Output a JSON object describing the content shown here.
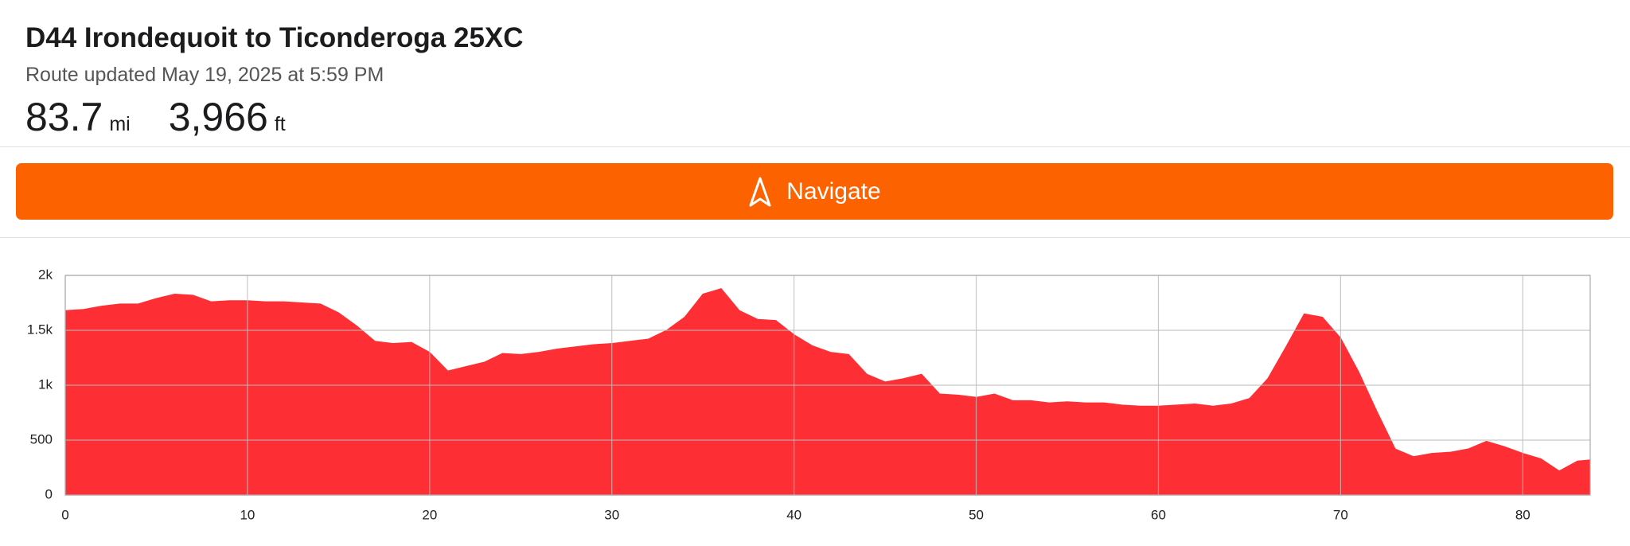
{
  "header": {
    "title": "D44 Irondequoit to Ticonderoga 25XC",
    "subtitle": "Route updated May 19, 2025 at 5:59 PM",
    "stats": [
      {
        "value": "83.7",
        "unit": "mi"
      },
      {
        "value": "3,966",
        "unit": "ft"
      }
    ]
  },
  "button": {
    "label": "Navigate"
  },
  "chart_data": {
    "type": "area",
    "color": "#fd2f35",
    "grid": true,
    "x": [
      0,
      1,
      2,
      3,
      4,
      5,
      6,
      7,
      8,
      9,
      10,
      11,
      12,
      13,
      14,
      15,
      16,
      17,
      18,
      19,
      20,
      21,
      22,
      23,
      24,
      25,
      26,
      27,
      28,
      29,
      30,
      31,
      32,
      33,
      34,
      35,
      36,
      37,
      38,
      39,
      40,
      41,
      42,
      43,
      44,
      45,
      46,
      47,
      48,
      49,
      50,
      51,
      52,
      53,
      54,
      55,
      56,
      57,
      58,
      59,
      60,
      61,
      62,
      63,
      64,
      65,
      66,
      67,
      68,
      69,
      70,
      71,
      72,
      73,
      74,
      75,
      76,
      77,
      78,
      79,
      80,
      81,
      82,
      83,
      83.7
    ],
    "values": [
      1680,
      1690,
      1720,
      1740,
      1740,
      1790,
      1830,
      1820,
      1760,
      1770,
      1770,
      1760,
      1760,
      1750,
      1740,
      1660,
      1540,
      1400,
      1380,
      1390,
      1300,
      1130,
      1170,
      1210,
      1290,
      1280,
      1300,
      1330,
      1350,
      1370,
      1380,
      1400,
      1420,
      1500,
      1620,
      1830,
      1880,
      1680,
      1600,
      1590,
      1460,
      1360,
      1300,
      1280,
      1100,
      1030,
      1060,
      1100,
      920,
      910,
      890,
      920,
      860,
      860,
      840,
      850,
      840,
      840,
      820,
      810,
      810,
      820,
      830,
      810,
      830,
      880,
      1060,
      1350,
      1650,
      1620,
      1430,
      1120,
      760,
      420,
      350,
      380,
      390,
      420,
      490,
      440,
      380,
      330,
      220,
      310,
      320
    ],
    "xlim": [
      0,
      83.7
    ],
    "ylim": [
      0,
      2000
    ],
    "xticks": [
      0,
      10,
      20,
      30,
      40,
      50,
      60,
      70,
      80
    ],
    "yticks": [
      0,
      500,
      {
        "value": 1000,
        "label": "1k"
      },
      {
        "value": 1500,
        "label": "1.5k"
      },
      {
        "value": 2000,
        "label": "2k"
      }
    ]
  }
}
